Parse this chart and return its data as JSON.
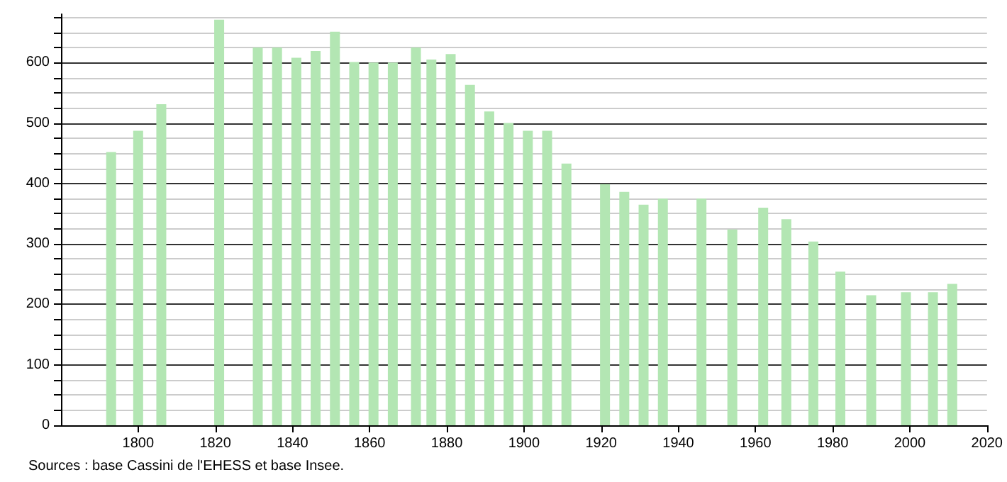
{
  "chart_data": {
    "type": "bar",
    "x": [
      1793,
      1800,
      1806,
      1821,
      1831,
      1836,
      1841,
      1846,
      1851,
      1856,
      1861,
      1866,
      1872,
      1876,
      1881,
      1886,
      1891,
      1896,
      1901,
      1906,
      1911,
      1921,
      1926,
      1931,
      1936,
      1946,
      1954,
      1962,
      1968,
      1975,
      1982,
      1990,
      1999,
      2006,
      2011
    ],
    "series": [
      {
        "color": "#b3e6b3",
        "values": [
          452,
          487,
          531,
          671,
          625,
          625,
          608,
          619,
          651,
          601,
          600,
          600,
          625,
          605,
          614,
          563,
          519,
          500,
          487,
          487,
          433,
          399,
          386,
          365,
          375,
          375,
          324,
          360,
          341,
          304,
          254,
          215,
          220,
          220,
          234
        ]
      }
    ],
    "xlim": [
      1780,
      2020
    ],
    "xticks": [
      1800,
      1820,
      1840,
      1860,
      1880,
      1900,
      1920,
      1940,
      1960,
      1980,
      2000,
      2020
    ],
    "ylim": [
      0,
      680
    ],
    "yticks": [
      0,
      {
        "value": 25,
        "label": null
      },
      {
        "value": 50,
        "label": null
      },
      {
        "value": 75,
        "label": null
      },
      100,
      {
        "value": 125,
        "label": null
      },
      {
        "value": 150,
        "label": null
      },
      {
        "value": 175,
        "label": null
      },
      200,
      {
        "value": 225,
        "label": null
      },
      {
        "value": 250,
        "label": null
      },
      {
        "value": 275,
        "label": null
      },
      300,
      {
        "value": 325,
        "label": null
      },
      {
        "value": 350,
        "label": null
      },
      {
        "value": 375,
        "label": null
      },
      400,
      {
        "value": 425,
        "label": null
      },
      {
        "value": 450,
        "label": null
      },
      {
        "value": 475,
        "label": null
      },
      500,
      {
        "value": 525,
        "label": null
      },
      {
        "value": 550,
        "label": null
      },
      {
        "value": 575,
        "label": null
      },
      600,
      {
        "value": 625,
        "label": null
      },
      {
        "value": 650,
        "label": null
      },
      {
        "value": 675,
        "label": null
      }
    ],
    "grid": "y",
    "annotations": [
      "Sources : base Cassini de l'EHESS et base Insee."
    ]
  }
}
